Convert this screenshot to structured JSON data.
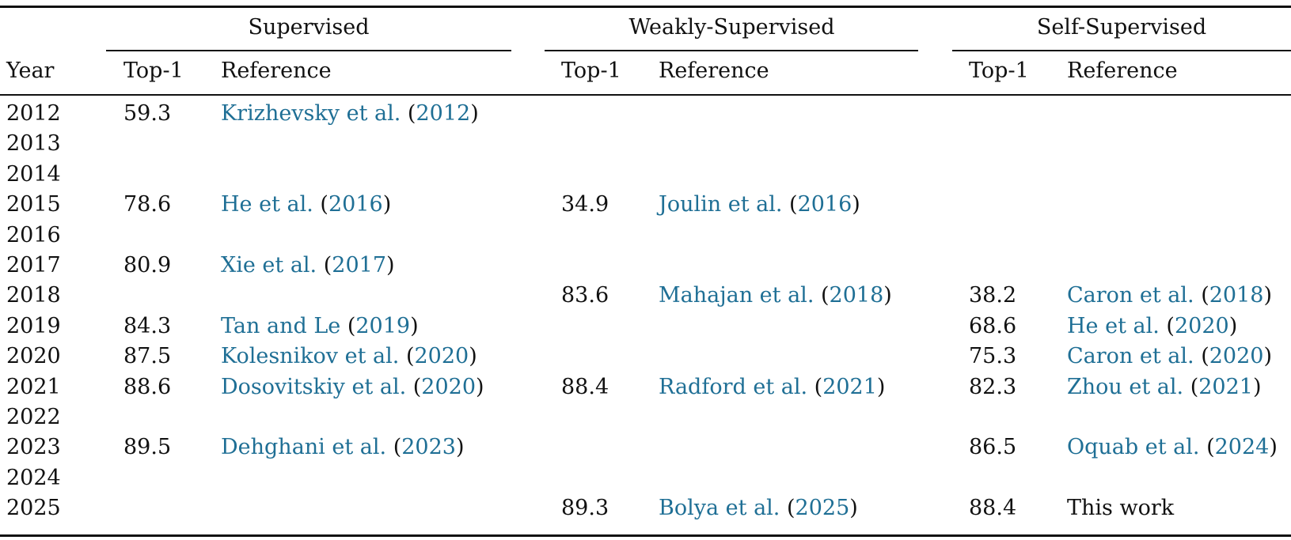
{
  "colors": {
    "link": "#1f6f95",
    "text": "#111111",
    "rules": "#111111"
  },
  "table": {
    "groups": [
      {
        "name": "Supervised"
      },
      {
        "name": "Weakly-Supervised"
      },
      {
        "name": "Self-Supervised"
      }
    ],
    "headers": {
      "year": "Year",
      "sup_top1": "Top-1",
      "sup_ref": "Reference",
      "weak_top1": "Top-1",
      "weak_ref": "Reference",
      "self_top1": "Top-1",
      "self_ref": "Reference"
    },
    "rows": [
      {
        "year": "2012",
        "sup": {
          "top1": "59.3",
          "author": "Krizhevsky et al.",
          "ref_year": "2012"
        },
        "weak": {
          "top1": "",
          "author": "",
          "ref_year": ""
        },
        "self": {
          "top1": "",
          "author": "",
          "ref_year": "",
          "text": ""
        }
      },
      {
        "year": "2013",
        "sup": {
          "top1": "",
          "author": "",
          "ref_year": ""
        },
        "weak": {
          "top1": "",
          "author": "",
          "ref_year": ""
        },
        "self": {
          "top1": "",
          "author": "",
          "ref_year": "",
          "text": ""
        }
      },
      {
        "year": "2014",
        "sup": {
          "top1": "",
          "author": "",
          "ref_year": ""
        },
        "weak": {
          "top1": "",
          "author": "",
          "ref_year": ""
        },
        "self": {
          "top1": "",
          "author": "",
          "ref_year": "",
          "text": ""
        }
      },
      {
        "year": "2015",
        "sup": {
          "top1": "78.6",
          "author": "He et al.",
          "ref_year": "2016"
        },
        "weak": {
          "top1": "34.9",
          "author": "Joulin et al.",
          "ref_year": "2016"
        },
        "self": {
          "top1": "",
          "author": "",
          "ref_year": "",
          "text": ""
        }
      },
      {
        "year": "2016",
        "sup": {
          "top1": "",
          "author": "",
          "ref_year": ""
        },
        "weak": {
          "top1": "",
          "author": "",
          "ref_year": ""
        },
        "self": {
          "top1": "",
          "author": "",
          "ref_year": "",
          "text": ""
        }
      },
      {
        "year": "2017",
        "sup": {
          "top1": "80.9",
          "author": "Xie et al.",
          "ref_year": "2017"
        },
        "weak": {
          "top1": "",
          "author": "",
          "ref_year": ""
        },
        "self": {
          "top1": "",
          "author": "",
          "ref_year": "",
          "text": ""
        }
      },
      {
        "year": "2018",
        "sup": {
          "top1": "",
          "author": "",
          "ref_year": ""
        },
        "weak": {
          "top1": "83.6",
          "author": "Mahajan et al.",
          "ref_year": "2018"
        },
        "self": {
          "top1": "38.2",
          "author": "Caron et al.",
          "ref_year": "2018",
          "text": ""
        }
      },
      {
        "year": "2019",
        "sup": {
          "top1": "84.3",
          "author": "Tan and Le",
          "ref_year": "2019"
        },
        "weak": {
          "top1": "",
          "author": "",
          "ref_year": ""
        },
        "self": {
          "top1": "68.6",
          "author": "He et al.",
          "ref_year": "2020",
          "text": ""
        }
      },
      {
        "year": "2020",
        "sup": {
          "top1": "87.5",
          "author": "Kolesnikov et al.",
          "ref_year": "2020"
        },
        "weak": {
          "top1": "",
          "author": "",
          "ref_year": ""
        },
        "self": {
          "top1": "75.3",
          "author": "Caron et al.",
          "ref_year": "2020",
          "text": ""
        }
      },
      {
        "year": "2021",
        "sup": {
          "top1": "88.6",
          "author": "Dosovitskiy et al.",
          "ref_year": "2020"
        },
        "weak": {
          "top1": "88.4",
          "author": "Radford et al.",
          "ref_year": "2021"
        },
        "self": {
          "top1": "82.3",
          "author": "Zhou et al.",
          "ref_year": "2021",
          "text": ""
        }
      },
      {
        "year": "2022",
        "sup": {
          "top1": "",
          "author": "",
          "ref_year": ""
        },
        "weak": {
          "top1": "",
          "author": "",
          "ref_year": ""
        },
        "self": {
          "top1": "",
          "author": "",
          "ref_year": "",
          "text": ""
        }
      },
      {
        "year": "2023",
        "sup": {
          "top1": "89.5",
          "author": "Dehghani et al.",
          "ref_year": "2023"
        },
        "weak": {
          "top1": "",
          "author": "",
          "ref_year": ""
        },
        "self": {
          "top1": "86.5",
          "author": "Oquab et al.",
          "ref_year": "2024",
          "text": ""
        }
      },
      {
        "year": "2024",
        "sup": {
          "top1": "",
          "author": "",
          "ref_year": ""
        },
        "weak": {
          "top1": "",
          "author": "",
          "ref_year": ""
        },
        "self": {
          "top1": "",
          "author": "",
          "ref_year": "",
          "text": ""
        }
      },
      {
        "year": "2025",
        "sup": {
          "top1": "",
          "author": "",
          "ref_year": ""
        },
        "weak": {
          "top1": "89.3",
          "author": "Bolya et al.",
          "ref_year": "2025"
        },
        "self": {
          "top1": "88.4",
          "author": "",
          "ref_year": "",
          "text": "This work"
        }
      }
    ]
  }
}
